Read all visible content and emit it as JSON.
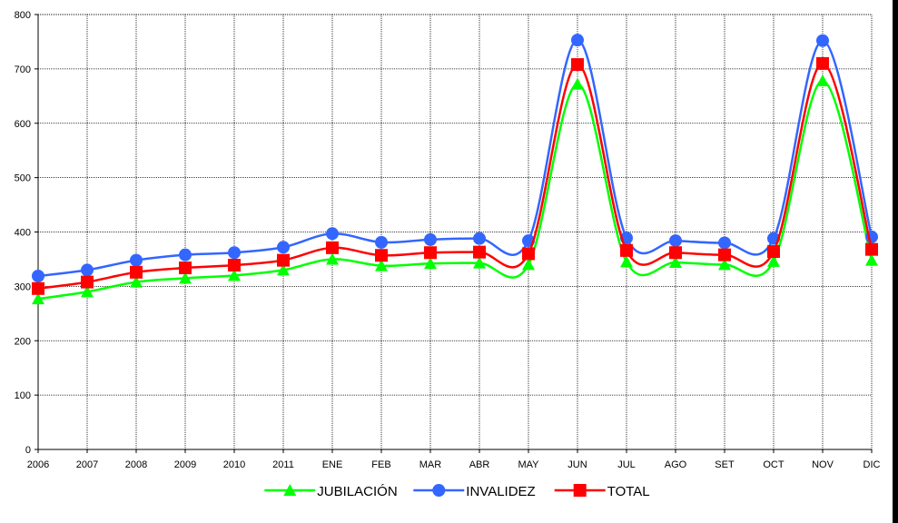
{
  "chart_data": {
    "type": "line",
    "categories": [
      "2006",
      "2007",
      "2008",
      "2009",
      "2010",
      "2011",
      "ENE",
      "FEB",
      "MAR",
      "ABR",
      "MAY",
      "JUN",
      "JUL",
      "AGO",
      "SET",
      "OCT",
      "NOV",
      "DIC"
    ],
    "ylim": [
      0,
      800
    ],
    "yticks": [
      "0",
      "100",
      "200",
      "300",
      "400",
      "500",
      "600",
      "700",
      "800"
    ],
    "grid": true,
    "legend_position": "bottom",
    "series": [
      {
        "name": "JUBILACIÓN",
        "color": "#00FF00",
        "marker": "triangle",
        "values": [
          277,
          290,
          308,
          315,
          320,
          330,
          350,
          338,
          342,
          343,
          340,
          672,
          345,
          344,
          340,
          346,
          678,
          348
        ]
      },
      {
        "name": "INVALIDEZ",
        "color": "#3366FF",
        "marker": "circle",
        "values": [
          319,
          330,
          348,
          358,
          362,
          372,
          397,
          381,
          386,
          388,
          384,
          753,
          389,
          384,
          380,
          388,
          752,
          391
        ]
      },
      {
        "name": "TOTAL",
        "color": "#FF0000",
        "marker": "square",
        "values": [
          296,
          308,
          326,
          334,
          339,
          348,
          371,
          357,
          362,
          363,
          360,
          708,
          366,
          362,
          358,
          364,
          710,
          368
        ]
      }
    ]
  }
}
